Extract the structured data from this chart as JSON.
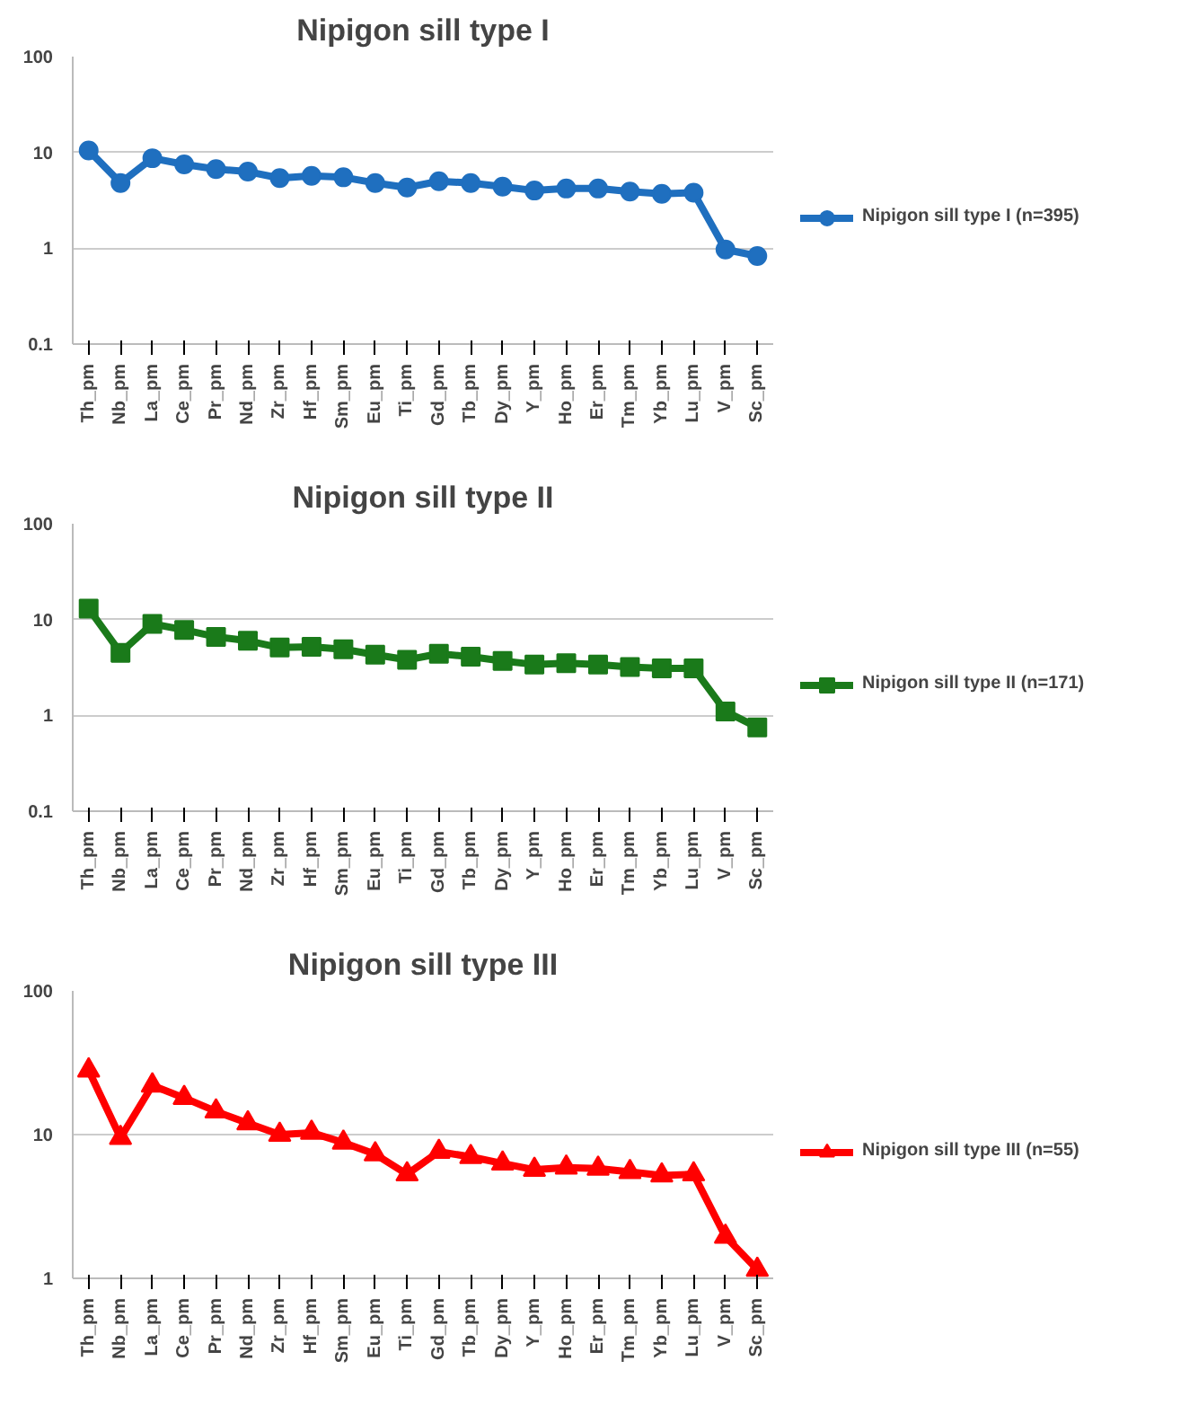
{
  "chart_data": [
    {
      "type": "line",
      "title": "Nipigon sill type I",
      "categories": [
        "Th_pm",
        "Nb_pm",
        "La_pm",
        "Ce_pm",
        "Pr_pm",
        "Nd_pm",
        "Zr_pm",
        "Hf_pm",
        "Sm_pm",
        "Eu_pm",
        "Ti_pm",
        "Gd_pm",
        "Tb_pm",
        "Dy_pm",
        "Y_pm",
        "Ho_pm",
        "Er_pm",
        "Tm_pm",
        "Yb_pm",
        "Lu_pm",
        "V_pm",
        "Sc_pm"
      ],
      "log": "y",
      "ylim": [
        0.1,
        100
      ],
      "yticks": [
        0.1,
        1,
        10,
        100
      ],
      "grid": "y",
      "legend": "right",
      "marker": "circle",
      "line_style": "solid",
      "series": [
        {
          "name": "Nipigon sill type I (n=395)",
          "color": "#1f6fbf",
          "values": [
            10.5,
            4.8,
            8.7,
            7.5,
            6.7,
            6.3,
            5.4,
            5.7,
            5.5,
            4.8,
            4.3,
            5.0,
            4.8,
            4.4,
            4.0,
            4.2,
            4.2,
            3.9,
            3.7,
            3.8,
            0.97,
            0.83
          ]
        }
      ]
    },
    {
      "type": "line",
      "title": "Nipigon sill type II",
      "categories": [
        "Th_pm",
        "Nb_pm",
        "La_pm",
        "Ce_pm",
        "Pr_pm",
        "Nd_pm",
        "Zr_pm",
        "Hf_pm",
        "Sm_pm",
        "Eu_pm",
        "Ti_pm",
        "Gd_pm",
        "Tb_pm",
        "Dy_pm",
        "Y_pm",
        "Ho_pm",
        "Er_pm",
        "Tm_pm",
        "Yb_pm",
        "Lu_pm",
        "V_pm",
        "Sc_pm"
      ],
      "log": "y",
      "ylim": [
        0.1,
        100
      ],
      "yticks": [
        0.1,
        1,
        10,
        100
      ],
      "grid": "y",
      "legend": "right",
      "marker": "square",
      "line_style": "solid",
      "series": [
        {
          "name": "Nipigon sill type II (n=171)",
          "color": "#1a7a1a",
          "values": [
            13,
            4.5,
            9,
            7.8,
            6.6,
            6.0,
            5.1,
            5.2,
            4.9,
            4.3,
            3.8,
            4.4,
            4.1,
            3.7,
            3.4,
            3.5,
            3.4,
            3.2,
            3.1,
            3.1,
            1.1,
            0.75
          ]
        }
      ]
    },
    {
      "type": "line",
      "title": "Nipigon sill type III",
      "categories": [
        "Th_pm",
        "Nb_pm",
        "La_pm",
        "Ce_pm",
        "Pr_pm",
        "Nd_pm",
        "Zr_pm",
        "Hf_pm",
        "Sm_pm",
        "Eu_pm",
        "Ti_pm",
        "Gd_pm",
        "Tb_pm",
        "Dy_pm",
        "Y_pm",
        "Ho_pm",
        "Er_pm",
        "Tm_pm",
        "Yb_pm",
        "Lu_pm",
        "V_pm",
        "Sc_pm"
      ],
      "log": "y",
      "ylim": [
        1,
        100
      ],
      "yticks": [
        1,
        10,
        100
      ],
      "grid": "y",
      "legend": "right",
      "marker": "triangle",
      "line_style": "solid",
      "series": [
        {
          "name": "Nipigon sill type III (n=55)",
          "color": "#ff0000",
          "values": [
            28,
            9.5,
            22,
            18,
            14.5,
            12,
            10,
            10.3,
            8.8,
            7.3,
            5.3,
            7.6,
            7.0,
            6.3,
            5.7,
            5.9,
            5.8,
            5.5,
            5.2,
            5.3,
            1.95,
            1.15
          ]
        }
      ]
    }
  ]
}
